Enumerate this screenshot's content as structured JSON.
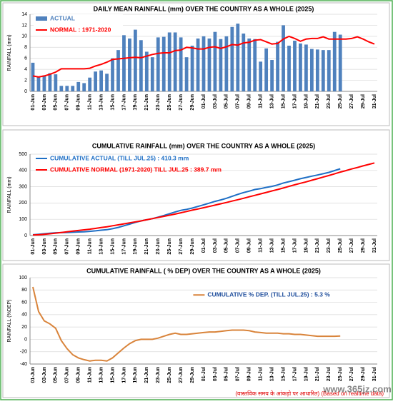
{
  "chart_data": [
    {
      "type": "bar",
      "title": "DAILY MEAN RAINFALL (mm) OVER THE COUNTRY AS A WHOLE  (2025)",
      "y_label": "RAINFALL  (mm)",
      "legend": "upper left",
      "grid": true,
      "categories": [
        "01-Jun",
        null,
        "03-Jun",
        null,
        "05-Jun",
        null,
        "07-Jun",
        null,
        "09-Jun",
        null,
        "11-Jun",
        null,
        "13-Jun",
        null,
        "15-Jun",
        null,
        "17-Jun",
        null,
        "19-Jun",
        null,
        "21-Jun",
        null,
        "23-Jun",
        null,
        "25-Jun",
        null,
        "27-Jun",
        null,
        "29-Jun",
        null,
        "01-Jul",
        null,
        "03-Jul",
        null,
        "05-Jul",
        null,
        "07-Jul",
        null,
        "09-Jul",
        null,
        "11-Jul",
        null,
        "13-Jul",
        null,
        "15-Jul",
        null,
        "17-Jul",
        null,
        "19-Jul",
        null,
        "21-Jul",
        null,
        "23-Jul",
        null,
        "25-Jul",
        null,
        "27-Jul",
        null,
        "29-Jul",
        null,
        "31-Jul"
      ],
      "ylim": [
        0,
        14
      ],
      "yticks": [
        0,
        2,
        4,
        6,
        8,
        10,
        12,
        14
      ],
      "series": [
        {
          "name": "ACTUAL",
          "type": "bar",
          "color": "#4f81bd",
          "values": [
            5.2,
            2.6,
            2.9,
            3.3,
            3.1,
            1.0,
            1.0,
            1.0,
            1.7,
            1.5,
            2.5,
            3.6,
            3.8,
            3.2,
            6.0,
            7.5,
            10.2,
            9.6,
            11.2,
            9.3,
            7.2,
            6.2,
            9.8,
            9.9,
            10.7,
            10.7,
            9.8,
            6.2,
            8.3,
            9.6,
            10.0,
            9.6,
            10.8,
            9.5,
            10.0,
            11.7,
            12.3,
            10.5,
            9.6,
            9.5,
            5.4,
            7.8,
            5.7,
            9.0,
            12.0,
            8.3,
            9.2,
            8.7,
            8.5,
            7.7,
            7.6,
            7.5,
            7.5,
            10.8,
            10.3,
            null,
            null,
            null,
            null,
            null,
            null
          ]
        },
        {
          "name": "NORMAL : 1971-2020",
          "type": "line",
          "color": "#ff0000",
          "values": [
            2.8,
            2.6,
            2.8,
            3.1,
            3.5,
            4.1,
            4.1,
            4.1,
            4.1,
            4.1,
            4.2,
            4.6,
            4.9,
            5.3,
            5.8,
            5.9,
            6.0,
            6.1,
            6.2,
            6.1,
            6.4,
            6.7,
            6.9,
            7.0,
            7.0,
            7.4,
            7.5,
            8.0,
            7.9,
            7.7,
            7.7,
            8.0,
            8.1,
            7.8,
            8.1,
            8.5,
            8.4,
            8.8,
            8.9,
            9.3,
            9.4,
            9.0,
            8.6,
            8.7,
            9.5,
            10.0,
            9.6,
            9.1,
            9.5,
            9.6,
            9.6,
            9.9,
            9.5,
            9.5,
            9.5,
            9.5,
            9.6,
            9.9,
            9.5,
            9.0,
            8.6
          ]
        }
      ]
    },
    {
      "type": "line",
      "title": "CUMULATIVE RAINFALL (mm) OVER THE COUNTRY AS A WHOLE  (2025)",
      "y_label": "RAINFALL  (mm)",
      "legend": "upper left",
      "grid": true,
      "categories": [
        "01-Jun",
        null,
        "03-Jun",
        null,
        "05-Jun",
        null,
        "07-Jun",
        null,
        "09-Jun",
        null,
        "11-Jun",
        null,
        "13-Jun",
        null,
        "15-Jun",
        null,
        "17-Jun",
        null,
        "19-Jun",
        null,
        "21-Jun",
        null,
        "23-Jun",
        null,
        "25-Jun",
        null,
        "27-Jun",
        null,
        "29-Jun",
        null,
        "01-Jul",
        null,
        "03-Jul",
        null,
        "05-Jul",
        null,
        "07-Jul",
        null,
        "09-Jul",
        null,
        "11-Jul",
        null,
        "13-Jul",
        null,
        "15-Jul",
        null,
        "17-Jul",
        null,
        "19-Jul",
        null,
        "21-Jul",
        null,
        "23-Jul",
        null,
        "25-Jul",
        null,
        "27-Jul",
        null,
        "29-Jul",
        null,
        "31-Jul"
      ],
      "ylim": [
        0,
        500
      ],
      "yticks": [
        0,
        100,
        200,
        300,
        400,
        500
      ],
      "series": [
        {
          "name": "CUMULATIVE ACTUAL (TILL JUL.25) : 410.3 mm",
          "type": "line",
          "color": "#1f6fc5",
          "values": [
            5,
            8,
            11,
            14,
            17,
            18,
            19,
            20,
            22,
            23,
            26,
            29,
            33,
            36,
            42,
            50,
            60,
            70,
            81,
            90,
            97,
            104,
            113,
            123,
            134,
            145,
            155,
            161,
            169,
            179,
            189,
            199,
            210,
            219,
            229,
            241,
            253,
            264,
            273,
            283,
            288,
            296,
            302,
            311,
            323,
            331,
            340,
            349,
            357,
            365,
            372,
            380,
            388,
            399,
            410.3,
            null,
            null,
            null,
            null,
            null,
            null
          ]
        },
        {
          "name": "CUMULATIVE NORMAL (1971-2020) TILL JUL.25 : 389.7 mm",
          "type": "line",
          "color": "#ff0000",
          "values": [
            3,
            5,
            8,
            11,
            15,
            19,
            23,
            27,
            31,
            35,
            39,
            44,
            49,
            54,
            60,
            66,
            72,
            78,
            84,
            90,
            97,
            104,
            111,
            118,
            125,
            132,
            140,
            148,
            156,
            163,
            171,
            179,
            187,
            195,
            203,
            212,
            220,
            229,
            238,
            247,
            256,
            265,
            274,
            283,
            292,
            302,
            312,
            321,
            330,
            340,
            349,
            359,
            369,
            379,
            389.7,
            399,
            409,
            418,
            428,
            437,
            446
          ]
        }
      ]
    },
    {
      "type": "line",
      "title": "CUMULATIVE RAINFALL ( % DEP) OVER THE COUNTRY AS A WHOLE (2025)",
      "y_label": "RAINFALL  (%DEP)",
      "legend": "center right",
      "grid": true,
      "annotation": "(वास्तविक समय के आंकड़ो पर आधारित) (Based on realtime data)",
      "watermark": "www.365jz.com",
      "categories": [
        "01-Jun",
        null,
        "03-Jun",
        null,
        "05-Jun",
        null,
        "07-Jun",
        null,
        "09-Jun",
        null,
        "11-Jun",
        null,
        "13-Jun",
        null,
        "15-Jun",
        null,
        "17-Jun",
        null,
        "19-Jun",
        null,
        "21-Jun",
        null,
        "23-Jun",
        null,
        "25-Jun",
        null,
        "27-Jun",
        null,
        "29-Jun",
        null,
        "01-Jul",
        null,
        "03-Jul",
        null,
        "05-Jul",
        null,
        "07-Jul",
        null,
        "09-Jul",
        null,
        "11-Jul",
        null,
        "13-Jul",
        null,
        "15-Jul",
        null,
        "17-Jul",
        null,
        "19-Jul",
        null,
        "21-Jul",
        null,
        "23-Jul",
        null,
        "25-Jul",
        null,
        "27-Jul",
        null,
        "29-Jul",
        null,
        "31-Jul"
      ],
      "ylim": [
        -40,
        100
      ],
      "yticks": [
        -40,
        -20,
        0,
        20,
        40,
        60,
        80,
        100
      ],
      "series": [
        {
          "name": "CUMULATIVE % DEP.  (TILL  JUL.25) : 5.3 %",
          "type": "line",
          "color": "#d9843b",
          "values": [
            85,
            45,
            30,
            25,
            18,
            -2,
            -15,
            -25,
            -30,
            -33,
            -35,
            -34,
            -34,
            -35,
            -30,
            -22,
            -14,
            -7,
            -2,
            0,
            0,
            0,
            2,
            5,
            8,
            10,
            8,
            8,
            9,
            10,
            11,
            12,
            12,
            13,
            14,
            15,
            15,
            15,
            14,
            12,
            11,
            10,
            10,
            10,
            9,
            9,
            8,
            8,
            7,
            6,
            5,
            5,
            5,
            5,
            5.3,
            null,
            null,
            null,
            null,
            null,
            null
          ]
        }
      ]
    }
  ]
}
